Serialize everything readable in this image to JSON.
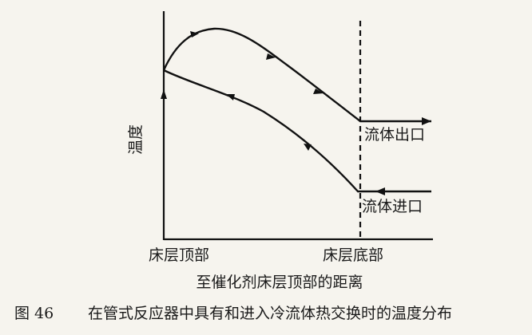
{
  "diagram": {
    "y_axis_label": "温度",
    "x_axis_label": "至催化剂床层顶部的距离",
    "outlet_label": "流体出口",
    "inlet_label": "流体进口",
    "top_label": "床层顶部",
    "bottom_label": "床层底部"
  },
  "caption": {
    "number": "图 46",
    "text": "在管式反应器中具有和进入冷流体热交换时的温度分布"
  }
}
